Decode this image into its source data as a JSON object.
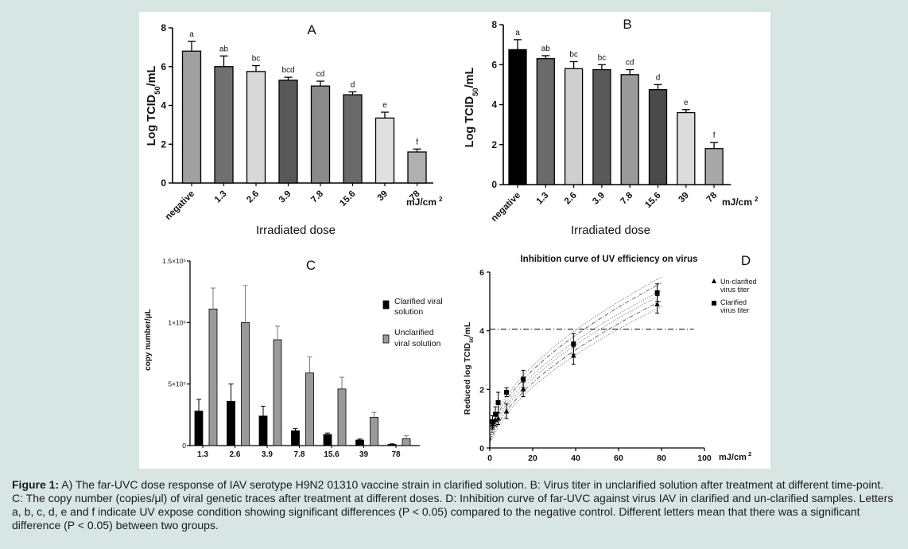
{
  "caption": {
    "label": "Figure 1:",
    "text": " A) The far-UVC dose response of IAV serotype H9N2 01310 vaccine strain in clarified solution. B: Virus titer in unclarified solution after treatment at different time-point. C: The copy number (copies/μl) of viral genetic traces after treatment at different doses. D: Inhibition curve of far-UVC against virus IAV in clarified and un-clarified samples. Letters a, b, c, d, e and f indicate UV expose condition showing significant differences (P < 0.05) compared to the negative control. Different letters mean that there was a significant difference (P < 0.05) between two groups."
  },
  "chart_data": [
    {
      "id": "A",
      "type": "bar",
      "panel_label": "A",
      "ylabel": "Log TCID50/mL",
      "xlabel": "Irradiated dose",
      "unit": "mJ/cm2",
      "categories": [
        "negative",
        "1.3",
        "2.6",
        "3.9",
        "7.8",
        "15.6",
        "39",
        "78"
      ],
      "values": [
        6.8,
        6.0,
        5.75,
        5.3,
        5.0,
        4.55,
        3.35,
        1.6
      ],
      "errors": [
        0.5,
        0.55,
        0.3,
        0.15,
        0.25,
        0.15,
        0.3,
        0.15
      ],
      "letters": [
        "a",
        "ab",
        "bc",
        "bcd",
        "cd",
        "d",
        "e",
        "f"
      ],
      "bar_colors": [
        "#a0a0a0",
        "#707070",
        "#d8d8d8",
        "#585858",
        "#8a8a8a",
        "#6a6a6a",
        "#e0e0e0",
        "#b0b0b0"
      ],
      "ylim": [
        0,
        8
      ],
      "yticks": [
        0,
        2,
        4,
        6,
        8
      ]
    },
    {
      "id": "B",
      "type": "bar",
      "panel_label": "B",
      "ylabel": "Log TCID50/mL",
      "xlabel": "Irradiated dose",
      "unit": "mJ/cm2",
      "categories": [
        "negative",
        "1.3",
        "2.6",
        "3.9",
        "7.8",
        "15.6",
        "39",
        "78"
      ],
      "values": [
        6.75,
        6.3,
        5.8,
        5.75,
        5.5,
        4.75,
        3.6,
        1.8
      ],
      "errors": [
        0.5,
        0.15,
        0.35,
        0.25,
        0.25,
        0.25,
        0.15,
        0.3
      ],
      "letters": [
        "a",
        "ab",
        "bc",
        "bc",
        "cd",
        "d",
        "e",
        "f"
      ],
      "bar_colors": [
        "#000000",
        "#6a6a6a",
        "#cfcfcf",
        "#595959",
        "#9a9a9a",
        "#4a4a4a",
        "#dcdcdc",
        "#a8a8a8"
      ],
      "ylim": [
        0,
        8
      ],
      "yticks": [
        0,
        2,
        4,
        6,
        8
      ]
    },
    {
      "id": "C",
      "type": "bar",
      "panel_label": "C",
      "ylabel": "copy number/μL",
      "categories": [
        "1.3",
        "2.6",
        "3.9",
        "7.8",
        "15.6",
        "39",
        "78"
      ],
      "series": [
        {
          "name": "Clarified viral solution",
          "color": "#000000",
          "values": [
            280000,
            360000,
            240000,
            120000,
            90000,
            45000,
            10000
          ],
          "errors": [
            95000,
            140000,
            80000,
            18000,
            12000,
            8000,
            4000
          ]
        },
        {
          "name": "Unclarified viral solution",
          "color": "#9a9a9a",
          "values": [
            1110000,
            1000000,
            860000,
            590000,
            460000,
            230000,
            55000
          ],
          "errors": [
            170000,
            300000,
            110000,
            130000,
            95000,
            40000,
            25000
          ]
        }
      ],
      "legend": [
        "Clarified viral",
        "solution",
        "Unclarified",
        "viral solution"
      ],
      "ylim": [
        0,
        1500000
      ],
      "yticks": [
        0,
        500000,
        1000000,
        1500000
      ],
      "yticklabels": [
        "0",
        "5×10⁵",
        "1×10⁶",
        "1.5×10⁶"
      ]
    },
    {
      "id": "D",
      "type": "scatter",
      "panel_label": "D",
      "title": "Inhibition curve of UV efficiency on virus",
      "ylabel": "Reduced log TCID50/mL",
      "unit": "mJ/cm2",
      "xlim": [
        0,
        100
      ],
      "ylim": [
        0,
        6
      ],
      "xticks": [
        0,
        20,
        40,
        60,
        80,
        100
      ],
      "yticks": [
        0,
        2,
        4,
        6
      ],
      "threshold": 4.05,
      "series": [
        {
          "name": "Un-clarified virus titer",
          "marker": "triangle",
          "x": [
            1.3,
            2.6,
            3.9,
            7.8,
            15.6,
            39,
            78
          ],
          "y": [
            0.8,
            0.95,
            1.0,
            1.25,
            2.0,
            3.15,
            4.9
          ],
          "errors": [
            0.15,
            0.2,
            0.2,
            0.25,
            0.25,
            0.3,
            0.3
          ]
        },
        {
          "name": "Clarified virus titer",
          "marker": "square",
          "x": [
            1.3,
            2.6,
            3.9,
            7.8,
            15.6,
            39,
            78
          ],
          "y": [
            0.9,
            1.15,
            1.55,
            1.9,
            2.35,
            3.55,
            5.3
          ],
          "errors": [
            0.2,
            0.25,
            0.35,
            0.15,
            0.3,
            0.35,
            0.3
          ]
        }
      ],
      "legend": [
        "Un-clarified",
        "virus titer",
        "Clarified",
        "virus titer"
      ]
    }
  ]
}
